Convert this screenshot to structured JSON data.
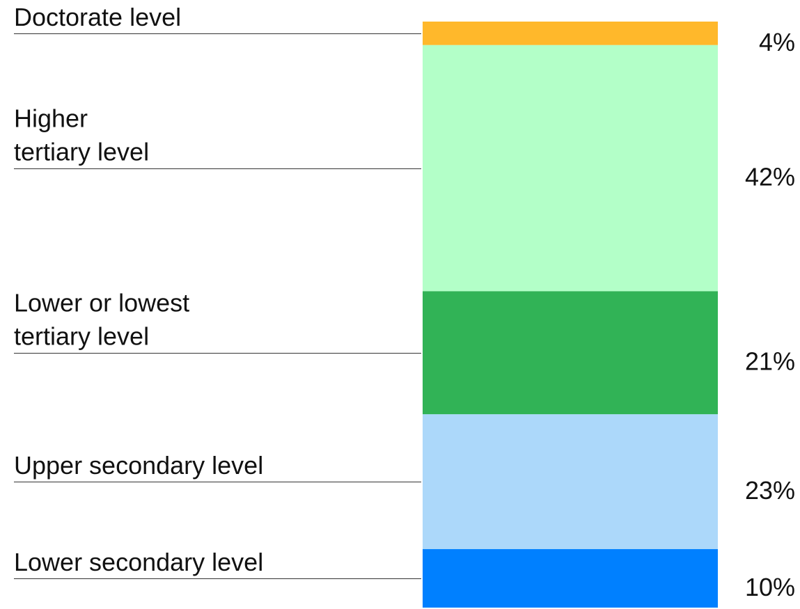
{
  "chart_data": {
    "type": "bar",
    "stacked": true,
    "categories": [
      [
        "Lower secondary level"
      ],
      [
        "Upper secondary level"
      ],
      [
        "Lower or lowest",
        "tertiary level"
      ],
      [
        "Higher",
        "tertiary level"
      ],
      [
        "Doctorate level"
      ]
    ],
    "values": [
      10,
      23,
      21,
      42,
      4
    ],
    "value_labels": [
      "10%",
      "23%",
      "21%",
      "42%",
      "4%"
    ],
    "colors": [
      "#0080ff",
      "#acd8fa",
      "#31b356",
      "#b3ffc8",
      "#ffb82b"
    ],
    "unit": "%",
    "stack_order": "bottom-to-top",
    "ylim": [
      0,
      100
    ],
    "title": "",
    "xlabel": "",
    "ylabel": ""
  }
}
